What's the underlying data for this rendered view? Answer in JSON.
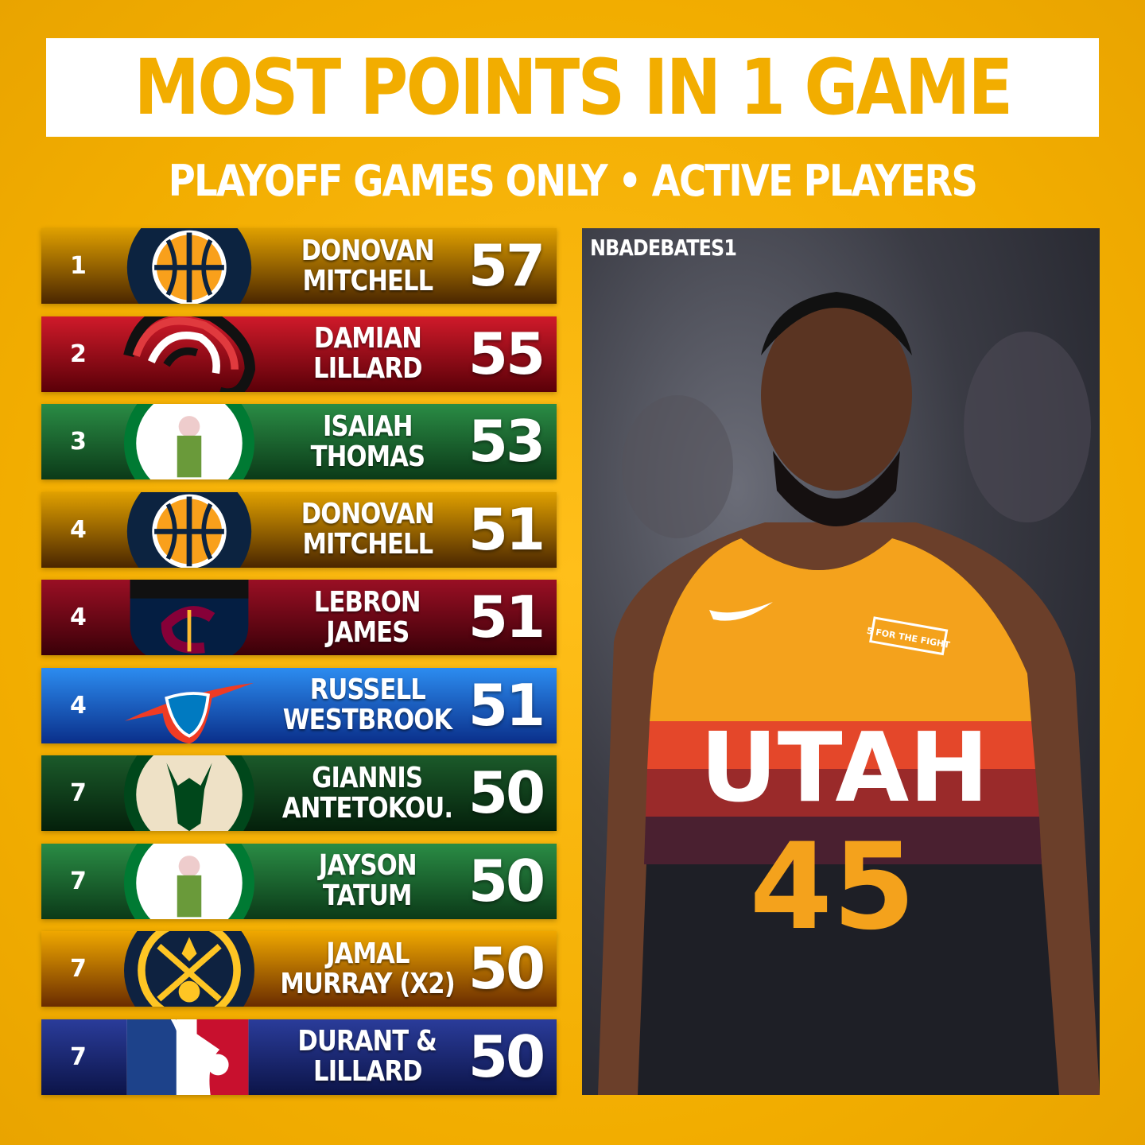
{
  "title": "MOST POINTS IN 1 GAME",
  "subtitle": "PLAYOFF GAMES ONLY • ACTIVE PLAYERS",
  "rows": [
    {
      "rank": "1",
      "line1": "DONOVAN",
      "line2": "MITCHELL",
      "points": "57",
      "team": "Utah Jazz",
      "logo_icon": "jazz-logo-icon",
      "color_top": "#e0a000",
      "color_bottom": "#4a2600"
    },
    {
      "rank": "2",
      "line1": "DAMIAN",
      "line2": "LILLARD",
      "points": "55",
      "team": "Portland Trail Blazers",
      "logo_icon": "blazers-logo-icon",
      "color_top": "#d01a2a",
      "color_bottom": "#5a0008"
    },
    {
      "rank": "3",
      "line1": "ISAIAH",
      "line2": "THOMAS",
      "points": "53",
      "team": "Boston Celtics",
      "logo_icon": "celtics-logo-icon",
      "color_top": "#2a8c45",
      "color_bottom": "#0b3a18"
    },
    {
      "rank": "4",
      "line1": "DONOVAN",
      "line2": "MITCHELL",
      "points": "51",
      "team": "Utah Jazz",
      "logo_icon": "jazz-logo-icon",
      "color_top": "#e0a000",
      "color_bottom": "#4a2600"
    },
    {
      "rank": "4",
      "line1": "LEBRON",
      "line2": "JAMES",
      "points": "51",
      "team": "Cleveland Cavaliers",
      "logo_icon": "cavaliers-logo-icon",
      "color_top": "#9a0f24",
      "color_bottom": "#3a0008"
    },
    {
      "rank": "4",
      "line1": "RUSSELL",
      "line2": "WESTBROOK",
      "points": "51",
      "team": "Oklahoma City Thunder",
      "logo_icon": "thunder-logo-icon",
      "color_top": "#2c8cf0",
      "color_bottom": "#0a2f8a"
    },
    {
      "rank": "7",
      "line1": "GIANNIS",
      "line2": "ANTETOKOU.",
      "points": "50",
      "team": "Milwaukee Bucks",
      "logo_icon": "bucks-logo-icon",
      "color_top": "#1b5a2a",
      "color_bottom": "#04200b"
    },
    {
      "rank": "7",
      "line1": "JAYSON",
      "line2": "TATUM",
      "points": "50",
      "team": "Boston Celtics",
      "logo_icon": "celtics-logo-icon",
      "color_top": "#2a8c45",
      "color_bottom": "#0b3a18"
    },
    {
      "rank": "7",
      "line1": "JAMAL",
      "line2": "MURRAY (X2)",
      "points": "50",
      "team": "Denver Nuggets",
      "logo_icon": "nuggets-logo-icon",
      "color_top": "#f0a800",
      "color_bottom": "#6a2c00"
    },
    {
      "rank": "7",
      "line1": "DURANT &",
      "line2": "LILLARD",
      "points": "50",
      "team": "NBA",
      "logo_icon": "nba-logo-icon",
      "color_top": "#2a3c9a",
      "color_bottom": "#0c1448"
    }
  ],
  "photo": {
    "watermark": "NBADEBATES1",
    "jersey_text": "UTAH",
    "jersey_number": "45",
    "patch_text": "5 FOR THE FIGHT"
  },
  "colors": {
    "background": "#f2ad00",
    "title": "#f2ad00",
    "title_box": "#ffffff"
  }
}
